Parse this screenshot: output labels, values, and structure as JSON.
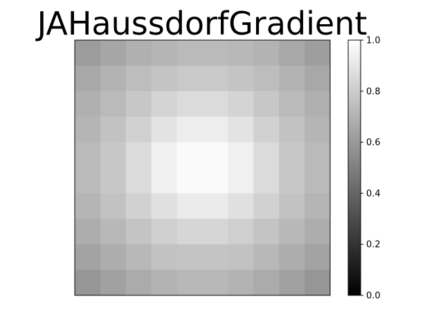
{
  "chart_data": {
    "type": "heatmap",
    "title": "JAHaussdorfGradient",
    "xlabel": "",
    "ylabel": "",
    "colormap": "gray",
    "x_ticks_visible": false,
    "y_ticks_visible": false,
    "grid": false,
    "colorbar": {
      "range": [
        0.0,
        1.0
      ],
      "ticks": [
        0.0,
        0.2,
        0.4,
        0.6,
        0.8,
        1.0
      ],
      "tick_labels": [
        "0.0",
        "0.2",
        "0.4",
        "0.6",
        "0.8",
        "1.0"
      ]
    },
    "values": [
      [
        0.61,
        0.65,
        0.69,
        0.71,
        0.73,
        0.73,
        0.72,
        0.7,
        0.66,
        0.62
      ],
      [
        0.66,
        0.7,
        0.74,
        0.77,
        0.79,
        0.79,
        0.77,
        0.74,
        0.7,
        0.66
      ],
      [
        0.69,
        0.73,
        0.78,
        0.83,
        0.86,
        0.86,
        0.83,
        0.78,
        0.73,
        0.69
      ],
      [
        0.71,
        0.76,
        0.82,
        0.89,
        0.93,
        0.93,
        0.89,
        0.82,
        0.76,
        0.71
      ],
      [
        0.73,
        0.78,
        0.86,
        0.94,
        0.98,
        0.98,
        0.94,
        0.86,
        0.78,
        0.73
      ],
      [
        0.73,
        0.78,
        0.86,
        0.94,
        0.98,
        0.98,
        0.94,
        0.86,
        0.78,
        0.73
      ],
      [
        0.71,
        0.76,
        0.82,
        0.88,
        0.92,
        0.92,
        0.88,
        0.82,
        0.76,
        0.71
      ],
      [
        0.68,
        0.72,
        0.77,
        0.81,
        0.84,
        0.84,
        0.81,
        0.77,
        0.72,
        0.68
      ],
      [
        0.64,
        0.68,
        0.72,
        0.76,
        0.77,
        0.77,
        0.76,
        0.72,
        0.68,
        0.64
      ],
      [
        0.59,
        0.63,
        0.67,
        0.7,
        0.72,
        0.72,
        0.7,
        0.67,
        0.63,
        0.59
      ]
    ]
  }
}
